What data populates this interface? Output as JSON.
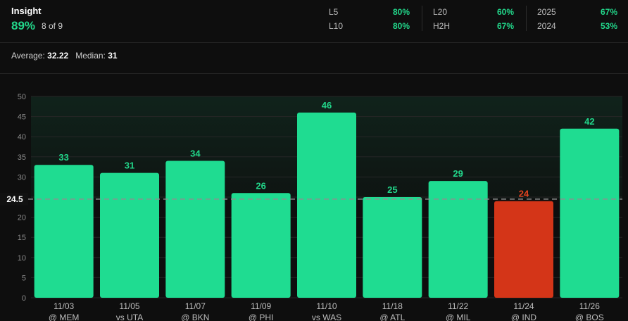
{
  "insight": {
    "title": "Insight",
    "pct": "89%",
    "count": "8 of 9"
  },
  "stats": [
    {
      "label": "L5",
      "value": "80%"
    },
    {
      "label": "L10",
      "value": "80%"
    },
    {
      "label": "L20",
      "value": "60%"
    },
    {
      "label": "H2H",
      "value": "67%"
    },
    {
      "label": "2025",
      "value": "67%"
    },
    {
      "label": "2024",
      "value": "53%"
    }
  ],
  "summary": {
    "avg_label": "Average:",
    "avg_value": "32.22",
    "median_label": "Median:",
    "median_value": "31"
  },
  "colors": {
    "hit": "#1fdc91",
    "miss": "#d43518",
    "hit_text": "#22d68a",
    "miss_text": "#e0431f"
  },
  "chart_data": {
    "type": "bar",
    "categories": [
      "11/03",
      "11/05",
      "11/07",
      "11/09",
      "11/10",
      "11/18",
      "11/22",
      "11/24",
      "11/26"
    ],
    "opponents": [
      "@ MEM",
      "vs UTA",
      "@ BKN",
      "@ PHI",
      "vs WAS",
      "@ ATL",
      "@ MIL",
      "@ IND",
      "@ BOS"
    ],
    "values": [
      33,
      31,
      34,
      26,
      46,
      25,
      29,
      24,
      42
    ],
    "line": 24.5,
    "line_label": "24.5",
    "ylim": [
      0,
      50
    ],
    "yticks": [
      0,
      5,
      10,
      15,
      20,
      25,
      30,
      35,
      40,
      45,
      50
    ],
    "grid": true
  }
}
